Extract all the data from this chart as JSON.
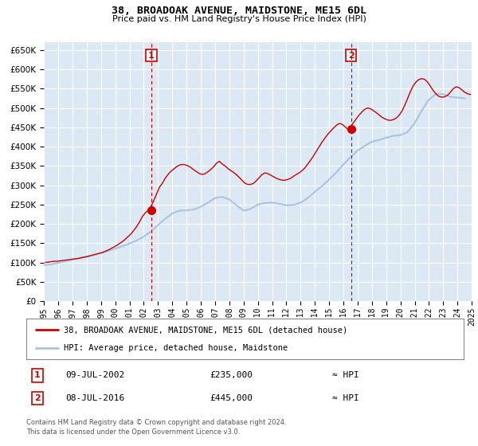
{
  "title": "38, BROADOAK AVENUE, MAIDSTONE, ME15 6DL",
  "subtitle": "Price paid vs. HM Land Registry's House Price Index (HPI)",
  "legend_line1": "38, BROADOAK AVENUE, MAIDSTONE, ME15 6DL (detached house)",
  "legend_line2": "HPI: Average price, detached house, Maidstone",
  "footnote1": "Contains HM Land Registry data © Crown copyright and database right 2024.",
  "footnote2": "This data is licensed under the Open Government Licence v3.0.",
  "marker1_label": "1",
  "marker1_date": "09-JUL-2002",
  "marker1_price": "£235,000",
  "marker1_hpi": "≈ HPI",
  "marker2_label": "2",
  "marker2_date": "08-JUL-2016",
  "marker2_price": "£445,000",
  "marker2_hpi": "≈ HPI",
  "ylim": [
    0,
    670000
  ],
  "ytick_step": 50000,
  "plot_bg_color": "#dce9f5",
  "hpi_color": "#aac4e0",
  "price_color": "#cc0000",
  "marker_color": "#cc0000",
  "vline_color": "#cc0000",
  "grid_color": "#ffffff",
  "hpi_data_x": [
    1995.0,
    1995.5,
    1996.0,
    1996.5,
    1997.0,
    1997.5,
    1998.0,
    1998.5,
    1999.0,
    1999.5,
    2000.0,
    2000.5,
    2001.0,
    2001.5,
    2002.0,
    2002.5,
    2003.0,
    2003.5,
    2004.0,
    2004.5,
    2005.0,
    2005.5,
    2006.0,
    2006.5,
    2007.0,
    2007.5,
    2008.0,
    2008.5,
    2009.0,
    2009.5,
    2010.0,
    2010.5,
    2011.0,
    2011.5,
    2012.0,
    2012.5,
    2013.0,
    2013.5,
    2014.0,
    2014.5,
    2015.0,
    2015.5,
    2016.0,
    2016.5,
    2017.0,
    2017.5,
    2018.0,
    2018.5,
    2019.0,
    2019.5,
    2020.0,
    2020.5,
    2021.0,
    2021.5,
    2022.0,
    2022.5,
    2023.0,
    2023.5,
    2024.0,
    2024.5
  ],
  "hpi_data_y": [
    93000,
    95000,
    99000,
    103000,
    107000,
    111000,
    115000,
    119000,
    124000,
    130000,
    136000,
    142000,
    149000,
    157000,
    167000,
    180000,
    197000,
    213000,
    227000,
    234000,
    235000,
    237000,
    244000,
    255000,
    267000,
    270000,
    263000,
    248000,
    234000,
    239000,
    250000,
    254000,
    255000,
    252000,
    248000,
    249000,
    255000,
    267000,
    283000,
    298000,
    315000,
    333000,
    354000,
    373000,
    390000,
    402000,
    413000,
    417000,
    423000,
    428000,
    430000,
    438000,
    461000,
    494000,
    522000,
    537000,
    536000,
    529000,
    527000,
    525000
  ],
  "price_data_x": [
    1995.1,
    1995.3,
    1995.5,
    1995.7,
    1995.9,
    1996.1,
    1996.3,
    1996.5,
    1996.7,
    1996.9,
    1997.1,
    1997.3,
    1997.5,
    1997.7,
    1997.9,
    1998.1,
    1998.3,
    1998.5,
    1998.7,
    1998.9,
    1999.1,
    1999.3,
    1999.5,
    1999.7,
    1999.9,
    2000.1,
    2000.3,
    2000.5,
    2000.7,
    2000.9,
    2001.1,
    2001.3,
    2001.5,
    2001.7,
    2001.9,
    2002.1,
    2002.3,
    2002.5,
    2002.7,
    2002.9,
    2003.1,
    2003.3,
    2003.5,
    2003.7,
    2003.9,
    2004.1,
    2004.3,
    2004.5,
    2004.7,
    2004.9,
    2005.1,
    2005.3,
    2005.5,
    2005.7,
    2005.9,
    2006.1,
    2006.3,
    2006.5,
    2006.7,
    2006.9,
    2007.1,
    2007.3,
    2007.5,
    2007.7,
    2007.9,
    2008.1,
    2008.3,
    2008.5,
    2008.7,
    2008.9,
    2009.1,
    2009.3,
    2009.5,
    2009.7,
    2009.9,
    2010.1,
    2010.3,
    2010.5,
    2010.7,
    2010.9,
    2011.1,
    2011.3,
    2011.5,
    2011.7,
    2011.9,
    2012.1,
    2012.3,
    2012.5,
    2012.7,
    2012.9,
    2013.1,
    2013.3,
    2013.5,
    2013.7,
    2013.9,
    2014.1,
    2014.3,
    2014.5,
    2014.7,
    2014.9,
    2015.1,
    2015.3,
    2015.5,
    2015.7,
    2015.9,
    2016.1,
    2016.3,
    2016.5,
    2016.7,
    2016.9,
    2017.1,
    2017.3,
    2017.5,
    2017.7,
    2017.9,
    2018.1,
    2018.3,
    2018.5,
    2018.7,
    2018.9,
    2019.1,
    2019.3,
    2019.5,
    2019.7,
    2019.9,
    2020.1,
    2020.3,
    2020.5,
    2020.7,
    2020.9,
    2021.1,
    2021.3,
    2021.5,
    2021.7,
    2021.9,
    2022.1,
    2022.3,
    2022.5,
    2022.7,
    2022.9,
    2023.1,
    2023.3,
    2023.5,
    2023.7,
    2023.9,
    2024.1,
    2024.3,
    2024.5,
    2024.7,
    2024.9
  ],
  "price_data_y": [
    100000,
    101000,
    102000,
    103000,
    103000,
    104000,
    105000,
    106000,
    107000,
    108000,
    109000,
    110000,
    111000,
    113000,
    114000,
    116000,
    118000,
    120000,
    122000,
    124000,
    126000,
    129000,
    132000,
    136000,
    140000,
    144000,
    149000,
    154000,
    160000,
    167000,
    174000,
    183000,
    193000,
    205000,
    219000,
    228000,
    235000,
    245000,
    260000,
    278000,
    295000,
    305000,
    318000,
    328000,
    336000,
    342000,
    348000,
    352000,
    354000,
    353000,
    350000,
    346000,
    340000,
    335000,
    330000,
    328000,
    330000,
    335000,
    341000,
    348000,
    357000,
    362000,
    355000,
    350000,
    343000,
    338000,
    333000,
    327000,
    320000,
    312000,
    305000,
    302000,
    302000,
    305000,
    312000,
    320000,
    328000,
    332000,
    330000,
    326000,
    322000,
    318000,
    315000,
    313000,
    313000,
    315000,
    318000,
    323000,
    328000,
    332000,
    338000,
    345000,
    355000,
    365000,
    376000,
    388000,
    400000,
    412000,
    422000,
    432000,
    440000,
    448000,
    455000,
    460000,
    458000,
    452000,
    445000,
    452000,
    462000,
    472000,
    482000,
    490000,
    497000,
    500000,
    498000,
    493000,
    488000,
    482000,
    476000,
    472000,
    469000,
    468000,
    470000,
    474000,
    481000,
    492000,
    507000,
    525000,
    543000,
    558000,
    568000,
    574000,
    576000,
    574000,
    567000,
    556000,
    545000,
    536000,
    530000,
    528000,
    529000,
    533000,
    541000,
    550000,
    555000,
    553000,
    547000,
    541000,
    537000,
    535000
  ],
  "marker1_x": 2002.53,
  "marker1_y": 235000,
  "marker2_x": 2016.53,
  "marker2_y": 445000,
  "xtick_years": [
    1995,
    1996,
    1997,
    1998,
    1999,
    2000,
    2001,
    2002,
    2003,
    2004,
    2005,
    2006,
    2007,
    2008,
    2009,
    2010,
    2011,
    2012,
    2013,
    2014,
    2015,
    2016,
    2017,
    2018,
    2019,
    2020,
    2021,
    2022,
    2023,
    2024,
    2025
  ]
}
